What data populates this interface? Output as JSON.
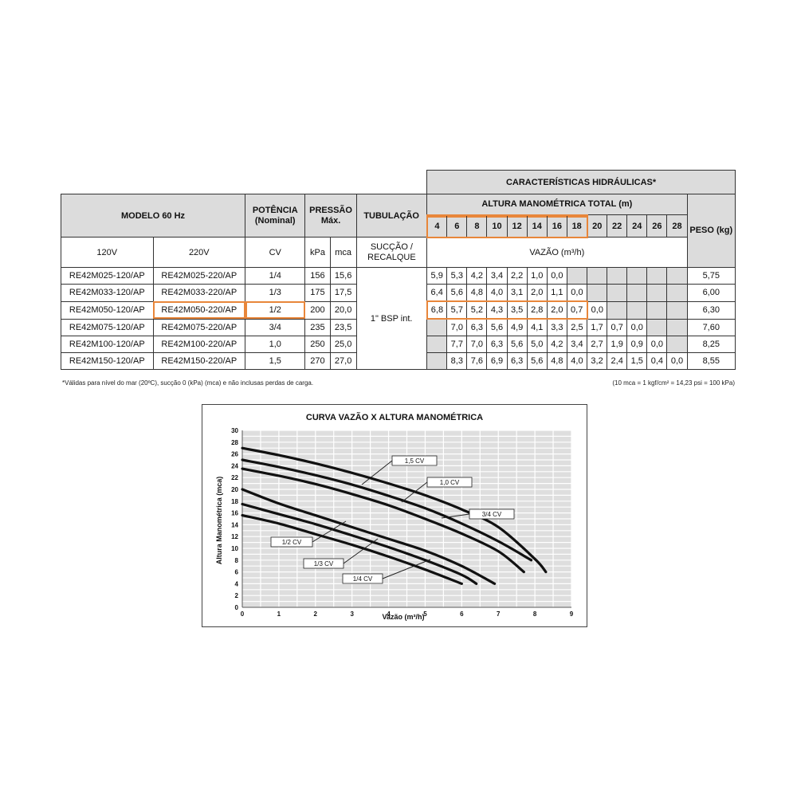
{
  "table": {
    "header_hydraulic": "CARACTERÍSTICAS HIDRÁULICAS*",
    "header_model": "MODELO 60 Hz",
    "header_power": "POTÊNCIA (Nominal)",
    "header_pressure": "PRESSÃO Máx.",
    "header_pipe": "TUBULAÇÃO",
    "header_height": "ALTURA MANOMÉTRICA TOTAL (m)",
    "header_weight": "PESO (kg)",
    "heights": [
      "4",
      "6",
      "8",
      "10",
      "12",
      "14",
      "16",
      "18",
      "20",
      "22",
      "24",
      "26",
      "28"
    ],
    "sub_120": "120V",
    "sub_220": "220V",
    "sub_cv": "CV",
    "sub_kpa": "kPa",
    "sub_mca": "mca",
    "sub_pipe": "SUCÇÃO / RECALQUE",
    "sub_flow": "VAZÃO (m³/h)",
    "pipe_value": "1\" BSP int.",
    "rows": [
      {
        "m120": "RE42M025-120/AP",
        "m220": "RE42M025-220/AP",
        "cv": "1/4",
        "kpa": "156",
        "mca": "15,6",
        "flows": [
          "5,9",
          "5,3",
          "4,2",
          "3,4",
          "2,2",
          "1,0",
          "0,0",
          "",
          "",
          "",
          "",
          "",
          ""
        ],
        "weight": "5,75"
      },
      {
        "m120": "RE42M033-120/AP",
        "m220": "RE42M033-220/AP",
        "cv": "1/3",
        "kpa": "175",
        "mca": "17,5",
        "flows": [
          "6,4",
          "5,6",
          "4,8",
          "4,0",
          "3,1",
          "2,0",
          "1,1",
          "0,0",
          "",
          "",
          "",
          "",
          ""
        ],
        "weight": "6,00"
      },
      {
        "m120": "RE42M050-120/AP",
        "m220": "RE42M050-220/AP",
        "cv": "1/2",
        "kpa": "200",
        "mca": "20,0",
        "flows": [
          "6,8",
          "5,7",
          "5,2",
          "4,3",
          "3,5",
          "2,8",
          "2,0",
          "0,7",
          "0,0",
          "",
          "",
          "",
          ""
        ],
        "weight": "6,30"
      },
      {
        "m120": "RE42M075-120/AP",
        "m220": "RE42M075-220/AP",
        "cv": "3/4",
        "kpa": "235",
        "mca": "23,5",
        "flows": [
          "",
          "7,0",
          "6,3",
          "5,6",
          "4,9",
          "4,1",
          "3,3",
          "2,5",
          "1,7",
          "0,7",
          "0,0",
          "",
          ""
        ],
        "weight": "7,60"
      },
      {
        "m120": "RE42M100-120/AP",
        "m220": "RE42M100-220/AP",
        "cv": "1,0",
        "kpa": "250",
        "mca": "25,0",
        "flows": [
          "",
          "7,7",
          "7,0",
          "6,3",
          "5,6",
          "5,0",
          "4,2",
          "3,4",
          "2,7",
          "1,9",
          "0,9",
          "0,0",
          ""
        ],
        "weight": "8,25"
      },
      {
        "m120": "RE42M150-120/AP",
        "m220": "RE42M150-220/AP",
        "cv": "1,5",
        "kpa": "270",
        "mca": "27,0",
        "flows": [
          "",
          "8,3",
          "7,6",
          "6,9",
          "6,3",
          "5,6",
          "4,8",
          "4,0",
          "3,2",
          "2,4",
          "1,5",
          "0,4",
          "0,0"
        ],
        "weight": "8,55"
      }
    ]
  },
  "notes": {
    "left": "*Válidas para nível do mar (20ºC), sucção 0 (kPa) (mca) e não inclusas perdas de carga.",
    "right": "(10 mca = 1 kgf/cm² = 14,23 psi = 100 kPa)"
  },
  "chart_data": {
    "type": "line",
    "title": "CURVA VAZÃO X ALTURA MANOMÉTRICA",
    "xlabel": "Vazão (m³/h)",
    "ylabel": "Altura Manométrica (mca)",
    "xlim": [
      0,
      9
    ],
    "ylim": [
      0,
      30
    ],
    "xticks": [
      "0",
      "1",
      "2",
      "3",
      "4",
      "5",
      "6",
      "7",
      "8",
      "9"
    ],
    "yticks": [
      "0",
      "2",
      "4",
      "6",
      "8",
      "10",
      "12",
      "14",
      "16",
      "18",
      "20",
      "22",
      "24",
      "26",
      "28",
      "30"
    ],
    "grid": true,
    "series": [
      {
        "name": "1/4 CV",
        "x": [
          0,
          1,
          2,
          3,
          4,
          5,
          6
        ],
        "y": [
          15.6,
          14.2,
          12.4,
          10.6,
          8.6,
          6.4,
          4.0
        ]
      },
      {
        "name": "1/3 CV",
        "x": [
          0,
          1,
          2,
          3,
          4,
          5,
          6,
          6.4
        ],
        "y": [
          17.5,
          15.8,
          14.1,
          12.2,
          10.2,
          8.0,
          5.5,
          4.0
        ]
      },
      {
        "name": "1/2 CV",
        "x": [
          0,
          1,
          2,
          3,
          4,
          5,
          6,
          6.9
        ],
        "y": [
          20.0,
          17.6,
          15.6,
          13.6,
          11.6,
          9.6,
          7.0,
          4.0
        ]
      },
      {
        "name": "3/4 CV",
        "x": [
          0,
          1,
          2,
          3,
          4,
          5,
          6,
          7,
          7.7
        ],
        "y": [
          23.5,
          22.3,
          20.9,
          19.2,
          17.3,
          15.0,
          12.5,
          9.5,
          6.0
        ]
      },
      {
        "name": "1,0 CV",
        "x": [
          0,
          1,
          2,
          3,
          4,
          5,
          6,
          7,
          7.9
        ],
        "y": [
          25.0,
          23.8,
          22.4,
          20.8,
          18.9,
          16.8,
          14.2,
          11.2,
          8.0
        ]
      },
      {
        "name": "1,5 CV",
        "x": [
          0,
          1,
          2,
          3,
          4,
          5,
          6,
          7,
          8,
          8.3
        ],
        "y": [
          27.0,
          25.8,
          24.4,
          22.8,
          21.0,
          19.0,
          16.6,
          13.6,
          8.2,
          6.0
        ]
      }
    ],
    "annotations": [
      {
        "label": "1,5 CV"
      },
      {
        "label": "1,0 CV"
      },
      {
        "label": "3/4 CV"
      },
      {
        "label": "1/2 CV"
      },
      {
        "label": "1/3 CV"
      },
      {
        "label": "1/4 CV"
      }
    ],
    "highlight_color": "#e8863a"
  }
}
